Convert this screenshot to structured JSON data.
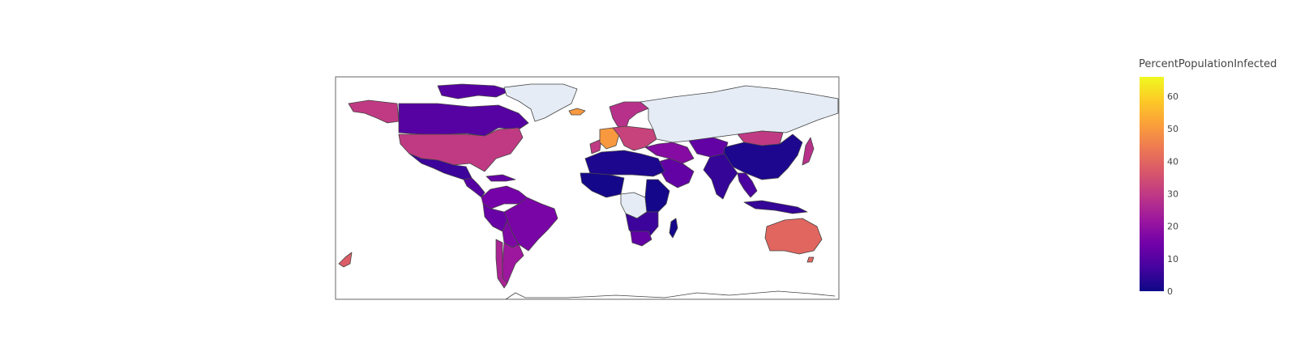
{
  "map": {
    "type": "choropleth",
    "projection": "equirectangular",
    "colorscale": [
      {
        "stop": 0.0,
        "color": "#0d0887"
      },
      {
        "stop": 0.111,
        "color": "#46039f"
      },
      {
        "stop": 0.222,
        "color": "#7201a8"
      },
      {
        "stop": 0.333,
        "color": "#9c179e"
      },
      {
        "stop": 0.444,
        "color": "#bd3786"
      },
      {
        "stop": 0.556,
        "color": "#d8576b"
      },
      {
        "stop": 0.667,
        "color": "#ed7953"
      },
      {
        "stop": 0.778,
        "color": "#fb9f3a"
      },
      {
        "stop": 0.889,
        "color": "#fdca26"
      },
      {
        "stop": 1.0,
        "color": "#f0f921"
      }
    ],
    "no_data_color": "#e5ecf6",
    "border_color": "#444444",
    "colorbar": {
      "title": "PercentPopulationInfected",
      "range": [
        0,
        66
      ],
      "ticks": [
        "0",
        "10",
        "20",
        "30",
        "40",
        "50",
        "60"
      ]
    },
    "regions": [
      {
        "name": "Alaska",
        "value": 30
      },
      {
        "name": "Canada",
        "value": 10
      },
      {
        "name": "Canadian Arctic",
        "value": 10
      },
      {
        "name": "United States",
        "value": 30
      },
      {
        "name": "Mexico",
        "value": 6
      },
      {
        "name": "Central America",
        "value": 10
      },
      {
        "name": "Caribbean",
        "value": 12
      },
      {
        "name": "Greenland",
        "value": null
      },
      {
        "name": "Iceland",
        "value": 50
      },
      {
        "name": "Colombia & Venezuela",
        "value": 15
      },
      {
        "name": "Brazil",
        "value": 16
      },
      {
        "name": "Peru",
        "value": 13
      },
      {
        "name": "Bolivia & Paraguay",
        "value": 17
      },
      {
        "name": "Argentina",
        "value": 22
      },
      {
        "name": "Chile",
        "value": 25
      },
      {
        "name": "Western Europe",
        "value": 30
      },
      {
        "name": "France",
        "value": 50
      },
      {
        "name": "Scandinavia",
        "value": 28
      },
      {
        "name": "Central Europe",
        "value": 32
      },
      {
        "name": "Russia",
        "value": null
      },
      {
        "name": "Turkey & Middle East",
        "value": 18
      },
      {
        "name": "Arabian Peninsula",
        "value": 12
      },
      {
        "name": "Central Asia",
        "value": 12
      },
      {
        "name": "Mongolia",
        "value": 30
      },
      {
        "name": "China",
        "value": 2
      },
      {
        "name": "Japan",
        "value": 28
      },
      {
        "name": "India",
        "value": 5
      },
      {
        "name": "Southeast Asia",
        "value": 8
      },
      {
        "name": "Indonesia",
        "value": 5
      },
      {
        "name": "North Africa",
        "value": 2
      },
      {
        "name": "West Africa",
        "value": 1
      },
      {
        "name": "Central Africa",
        "value": null
      },
      {
        "name": "East Africa",
        "value": 1
      },
      {
        "name": "Southern Africa",
        "value": 6
      },
      {
        "name": "South Africa",
        "value": 12
      },
      {
        "name": "Madagascar",
        "value": 1
      },
      {
        "name": "Australia",
        "value": 40
      },
      {
        "name": "New Zealand",
        "value": 38
      },
      {
        "name": "Tasmania",
        "value": 40
      }
    ]
  }
}
